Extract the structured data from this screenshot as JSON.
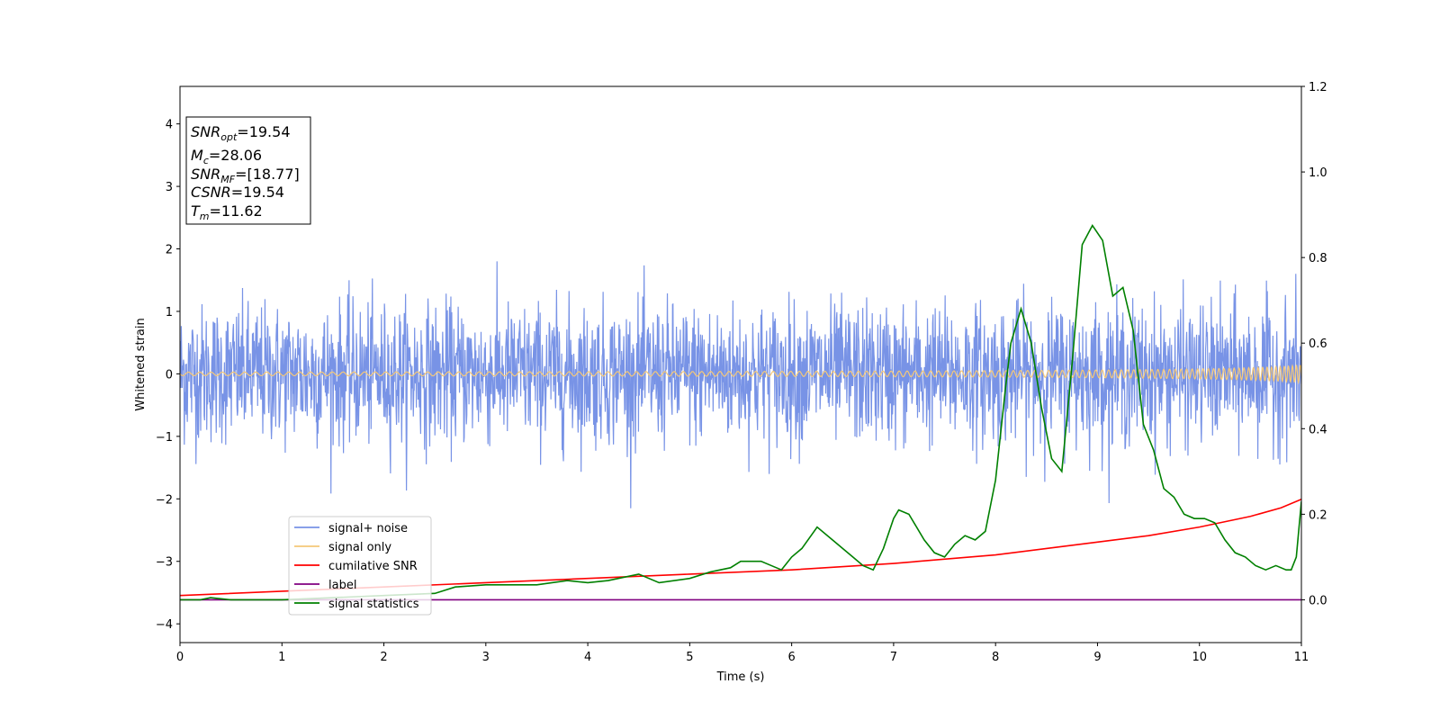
{
  "chart_data": {
    "type": "line",
    "xlabel": "Time (s)",
    "ylabel": "Whitened strain",
    "xlim": [
      0,
      11
    ],
    "ylim": [
      -4.3,
      4.6
    ],
    "y2lim": [
      -0.1,
      1.2
    ],
    "xticks": [
      0,
      1,
      2,
      3,
      4,
      5,
      6,
      7,
      8,
      9,
      10,
      11
    ],
    "xtick_labels": [
      "0",
      "1",
      "2",
      "3",
      "4",
      "5",
      "6",
      "7",
      "8",
      "9",
      "10",
      "11"
    ],
    "yticks": [
      -4,
      -3,
      -2,
      -1,
      0,
      1,
      2,
      3,
      4
    ],
    "ytick_labels": [
      "−4",
      "−3",
      "−2",
      "−1",
      "0",
      "1",
      "2",
      "3",
      "4"
    ],
    "y2ticks": [
      0.0,
      0.2,
      0.4,
      0.6,
      0.8,
      1.0,
      1.2
    ],
    "y2tick_labels": [
      "0.0",
      "0.2",
      "0.4",
      "0.6",
      "0.8",
      "1.0",
      "1.2"
    ],
    "grid": false,
    "legend_position": "lower-left",
    "annotation": {
      "lines": [
        {
          "name": "SNR",
          "sub": "opt",
          "value": "=19.54"
        },
        {
          "name": "M",
          "sub": "c",
          "value": "=28.06"
        },
        {
          "name": "SNR",
          "sub": "MF",
          "value": "=[18.77]"
        },
        {
          "name": "CSNR",
          "sub": "",
          "value": "=19.54"
        },
        {
          "name": "T",
          "sub": "m",
          "value": "=11.62"
        }
      ]
    },
    "series": [
      {
        "name": "signal+ noise",
        "color": "#7893e6",
        "axis": "left",
        "kind": "noise",
        "description_values": {
          "std": 0.55,
          "max": 2.2,
          "min": -2.15
        }
      },
      {
        "name": "signal only",
        "color": "#f5c878",
        "axis": "left",
        "kind": "chirp",
        "amplitude_end": 0.15
      },
      {
        "name": "cumilative SNR",
        "color": "#ff0000",
        "axis": "right",
        "x": [
          0,
          1,
          2,
          3,
          4,
          5,
          6,
          7,
          8,
          8.5,
          9,
          9.5,
          10,
          10.5,
          10.8,
          11
        ],
        "y": [
          0.01,
          0.02,
          0.03,
          0.04,
          0.05,
          0.06,
          0.07,
          0.085,
          0.105,
          0.12,
          0.135,
          0.15,
          0.17,
          0.195,
          0.215,
          0.235
        ]
      },
      {
        "name": "label",
        "color": "#800080",
        "axis": "right",
        "x": [
          0,
          11
        ],
        "y": [
          0.0,
          0.0
        ]
      },
      {
        "name": "signal statistics",
        "color": "#008000",
        "axis": "right",
        "x": [
          0,
          0.2,
          0.3,
          0.5,
          1.0,
          1.5,
          2.0,
          2.5,
          2.7,
          3.0,
          3.5,
          3.8,
          4.0,
          4.2,
          4.3,
          4.5,
          4.7,
          5.0,
          5.2,
          5.4,
          5.5,
          5.7,
          5.8,
          5.9,
          6.0,
          6.1,
          6.25,
          6.4,
          6.5,
          6.6,
          6.7,
          6.8,
          6.9,
          7.0,
          7.05,
          7.15,
          7.3,
          7.4,
          7.5,
          7.6,
          7.7,
          7.8,
          7.9,
          8.0,
          8.1,
          8.15,
          8.25,
          8.35,
          8.45,
          8.55,
          8.65,
          8.75,
          8.85,
          8.95,
          9.05,
          9.15,
          9.25,
          9.35,
          9.45,
          9.55,
          9.65,
          9.75,
          9.85,
          9.95,
          10.05,
          10.15,
          10.25,
          10.35,
          10.45,
          10.55,
          10.65,
          10.75,
          10.85,
          10.9,
          10.95,
          11.0
        ],
        "y": [
          0.0,
          0.0,
          0.005,
          0.0,
          0.0,
          0.005,
          0.01,
          0.015,
          0.03,
          0.035,
          0.035,
          0.045,
          0.04,
          0.045,
          0.05,
          0.06,
          0.04,
          0.05,
          0.065,
          0.075,
          0.09,
          0.09,
          0.08,
          0.07,
          0.1,
          0.12,
          0.17,
          0.14,
          0.12,
          0.1,
          0.08,
          0.07,
          0.12,
          0.19,
          0.21,
          0.2,
          0.14,
          0.11,
          0.1,
          0.13,
          0.15,
          0.14,
          0.16,
          0.28,
          0.5,
          0.6,
          0.68,
          0.6,
          0.45,
          0.33,
          0.3,
          0.55,
          0.83,
          0.875,
          0.84,
          0.71,
          0.73,
          0.63,
          0.41,
          0.35,
          0.26,
          0.24,
          0.2,
          0.19,
          0.19,
          0.18,
          0.14,
          0.11,
          0.1,
          0.08,
          0.07,
          0.08,
          0.07,
          0.07,
          0.1,
          0.23
        ]
      }
    ]
  }
}
